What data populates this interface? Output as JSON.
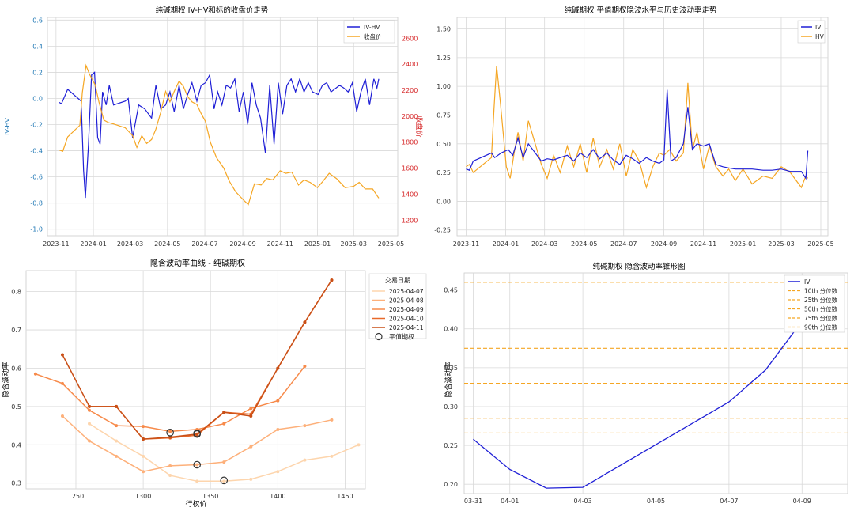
{
  "colors": {
    "ivhv": "#1f1fd6",
    "close": "#f5a623",
    "red_axis": "#d62728",
    "blue_axis": "#1f77b4",
    "grid": "#d9d9d9",
    "panel_bg": "#ffffff",
    "panel_bg3": "#eaeaf2",
    "curve_colors": [
      "#fdd5ad",
      "#fdb07a",
      "#f78a4a",
      "#e8692a",
      "#c94f16"
    ]
  },
  "chart_data": [
    {
      "type": "line",
      "title": "纯碱期权 IV-HV和标的收盘价走势",
      "ylabel": "IV-HV",
      "y2label": "收盘价",
      "x_ticks": [
        "2023-11",
        "2024-01",
        "2024-03",
        "2024-05",
        "2024-07",
        "2024-09",
        "2024-11",
        "2025-01",
        "2025-03",
        "2025-05"
      ],
      "y_ticks": [
        "-1.0",
        "-0.8",
        "-0.6",
        "-0.4",
        "-0.2",
        "0.0",
        "0.2",
        "0.4",
        "0.6"
      ],
      "y2_ticks": [
        "1200",
        "1400",
        "1600",
        "1800",
        "2000",
        "2200",
        "2400",
        "2600"
      ],
      "ylim": [
        -1.05,
        0.62
      ],
      "y2lim": [
        1080,
        2760
      ],
      "xlim": [
        "2023-10-18",
        "2025-05-12"
      ],
      "grid": true,
      "legend_position": "top-right",
      "series": [
        {
          "name": "IV-HV",
          "color": "#1f1fd6",
          "axis": "left",
          "x": [
            "2023-11-06",
            "2023-11-10",
            "2023-11-20",
            "2023-12-12",
            "2023-12-16",
            "2023-12-19",
            "2023-12-24",
            "2023-12-29",
            "2024-01-03",
            "2024-01-08",
            "2024-01-12",
            "2024-01-16",
            "2024-01-22",
            "2024-01-27",
            "2024-02-03",
            "2024-02-22",
            "2024-02-27",
            "2024-03-05",
            "2024-03-15",
            "2024-03-25",
            "2024-04-05",
            "2024-04-12",
            "2024-04-20",
            "2024-04-28",
            "2024-05-05",
            "2024-05-12",
            "2024-05-20",
            "2024-05-27",
            "2024-06-03",
            "2024-06-10",
            "2024-06-18",
            "2024-06-25",
            "2024-07-02",
            "2024-07-09",
            "2024-07-16",
            "2024-07-22",
            "2024-07-29",
            "2024-08-05",
            "2024-08-12",
            "2024-08-19",
            "2024-08-26",
            "2024-09-02",
            "2024-09-09",
            "2024-09-16",
            "2024-09-23",
            "2024-09-30",
            "2024-10-08",
            "2024-10-15",
            "2024-10-22",
            "2024-10-29",
            "2024-11-05",
            "2024-11-12",
            "2024-11-19",
            "2024-11-26",
            "2024-12-03",
            "2024-12-10",
            "2024-12-17",
            "2024-12-24",
            "2025-01-02",
            "2025-01-09",
            "2025-01-16",
            "2025-01-23",
            "2025-02-06",
            "2025-02-13",
            "2025-02-20",
            "2025-02-27",
            "2025-03-06",
            "2025-03-13",
            "2025-03-20",
            "2025-03-27",
            "2025-04-03",
            "2025-04-08",
            "2025-04-11"
          ],
          "y": [
            -0.03,
            -0.04,
            0.07,
            -0.02,
            -0.55,
            -0.76,
            -0.35,
            0.18,
            0.2,
            -0.3,
            -0.35,
            0.05,
            -0.05,
            0.1,
            -0.05,
            -0.02,
            0.0,
            -0.3,
            -0.05,
            -0.08,
            -0.15,
            0.1,
            -0.08,
            -0.05,
            0.05,
            -0.1,
            0.1,
            -0.08,
            0.03,
            0.12,
            -0.02,
            0.1,
            0.12,
            0.18,
            -0.08,
            0.05,
            -0.05,
            0.1,
            0.08,
            0.15,
            -0.1,
            0.05,
            -0.2,
            0.12,
            -0.05,
            -0.15,
            -0.42,
            0.1,
            -0.35,
            0.12,
            -0.12,
            0.1,
            0.15,
            0.05,
            0.15,
            0.05,
            0.12,
            0.05,
            0.03,
            0.1,
            0.12,
            0.05,
            0.1,
            0.08,
            0.05,
            0.12,
            -0.1,
            0.05,
            0.15,
            -0.05,
            0.15,
            0.08,
            0.15
          ]
        },
        {
          "name": "收盘价",
          "color": "#f5a623",
          "axis": "right",
          "x": [
            "2023-11-06",
            "2023-11-12",
            "2023-11-20",
            "2023-12-10",
            "2023-12-14",
            "2023-12-20",
            "2023-12-26",
            "2024-01-04",
            "2024-01-10",
            "2024-01-18",
            "2024-01-26",
            "2024-02-03",
            "2024-02-22",
            "2024-03-05",
            "2024-03-12",
            "2024-03-20",
            "2024-03-28",
            "2024-04-05",
            "2024-04-12",
            "2024-04-20",
            "2024-04-28",
            "2024-05-05",
            "2024-05-12",
            "2024-05-20",
            "2024-05-27",
            "2024-06-03",
            "2024-06-10",
            "2024-06-18",
            "2024-06-25",
            "2024-07-02",
            "2024-07-10",
            "2024-07-20",
            "2024-08-01",
            "2024-08-10",
            "2024-08-20",
            "2024-09-01",
            "2024-09-10",
            "2024-09-20",
            "2024-10-01",
            "2024-10-10",
            "2024-10-20",
            "2024-11-01",
            "2024-11-10",
            "2024-11-20",
            "2024-12-01",
            "2024-12-10",
            "2024-12-20",
            "2025-01-01",
            "2025-01-10",
            "2025-01-20",
            "2025-02-01",
            "2025-02-15",
            "2025-03-01",
            "2025-03-10",
            "2025-03-20",
            "2025-04-01",
            "2025-04-11"
          ],
          "y": [
            1740,
            1730,
            1840,
            1930,
            2180,
            2390,
            2320,
            2240,
            2110,
            1970,
            1950,
            1940,
            1910,
            1850,
            1760,
            1850,
            1790,
            1820,
            1900,
            2030,
            2190,
            2110,
            2190,
            2270,
            2230,
            2150,
            2110,
            2090,
            2020,
            1960,
            1800,
            1680,
            1600,
            1500,
            1420,
            1360,
            1320,
            1480,
            1470,
            1520,
            1510,
            1580,
            1560,
            1570,
            1470,
            1510,
            1490,
            1450,
            1500,
            1560,
            1520,
            1450,
            1460,
            1490,
            1440,
            1440,
            1370
          ]
        }
      ]
    },
    {
      "type": "line",
      "title": "纯碱期权 平值期权隐波水平与历史波动率走势",
      "x_ticks": [
        "2023-11",
        "2024-01",
        "2024-03",
        "2024-05",
        "2024-07",
        "2024-09",
        "2024-11",
        "2025-01",
        "2025-03",
        "2025-05"
      ],
      "y_ticks": [
        "-0.25",
        "0.00",
        "0.25",
        "0.50",
        "0.75",
        "1.00",
        "1.25",
        "1.50"
      ],
      "ylim": [
        -0.3,
        1.6
      ],
      "xlim": [
        "2023-10-18",
        "2025-05-12"
      ],
      "grid": true,
      "legend_position": "top-right",
      "series": [
        {
          "name": "IV",
          "color": "#1f1fd6",
          "x": [
            "2023-11-01",
            "2023-11-06",
            "2023-11-12",
            "2023-12-10",
            "2023-12-15",
            "2023-12-25",
            "2024-01-05",
            "2024-01-12",
            "2024-01-20",
            "2024-01-28",
            "2024-02-05",
            "2024-02-25",
            "2024-03-05",
            "2024-03-15",
            "2024-03-25",
            "2024-04-05",
            "2024-04-15",
            "2024-04-25",
            "2024-05-05",
            "2024-05-15",
            "2024-05-25",
            "2024-06-05",
            "2024-06-15",
            "2024-06-25",
            "2024-07-05",
            "2024-07-15",
            "2024-07-25",
            "2024-08-05",
            "2024-08-15",
            "2024-08-25",
            "2024-09-01",
            "2024-09-06",
            "2024-09-12",
            "2024-09-20",
            "2024-10-01",
            "2024-10-08",
            "2024-10-15",
            "2024-10-22",
            "2024-11-01",
            "2024-11-10",
            "2024-11-20",
            "2024-12-01",
            "2024-12-10",
            "2024-12-20",
            "2025-01-01",
            "2025-01-15",
            "2025-02-01",
            "2025-02-15",
            "2025-03-01",
            "2025-03-15",
            "2025-04-01",
            "2025-04-08",
            "2025-04-11"
          ],
          "y": [
            0.28,
            0.27,
            0.35,
            0.42,
            0.38,
            0.42,
            0.45,
            0.4,
            0.55,
            0.38,
            0.5,
            0.35,
            0.37,
            0.36,
            0.38,
            0.4,
            0.35,
            0.42,
            0.38,
            0.45,
            0.37,
            0.42,
            0.36,
            0.32,
            0.4,
            0.37,
            0.33,
            0.38,
            0.35,
            0.33,
            0.36,
            0.97,
            0.35,
            0.38,
            0.5,
            0.82,
            0.45,
            0.5,
            0.48,
            0.5,
            0.32,
            0.3,
            0.29,
            0.28,
            0.28,
            0.28,
            0.27,
            0.27,
            0.28,
            0.26,
            0.26,
            0.2,
            0.44
          ]
        },
        {
          "name": "HV",
          "color": "#f5a623",
          "x": [
            "2023-11-01",
            "2023-11-06",
            "2023-11-12",
            "2023-12-10",
            "2023-12-14",
            "2023-12-18",
            "2023-12-24",
            "2024-01-02",
            "2024-01-08",
            "2024-01-14",
            "2024-01-20",
            "2024-01-28",
            "2024-02-05",
            "2024-02-25",
            "2024-03-05",
            "2024-03-15",
            "2024-03-25",
            "2024-04-05",
            "2024-04-15",
            "2024-04-25",
            "2024-05-05",
            "2024-05-15",
            "2024-05-25",
            "2024-06-05",
            "2024-06-15",
            "2024-06-25",
            "2024-07-05",
            "2024-07-15",
            "2024-07-25",
            "2024-08-05",
            "2024-08-15",
            "2024-08-25",
            "2024-09-01",
            "2024-09-10",
            "2024-09-20",
            "2024-10-01",
            "2024-10-08",
            "2024-10-15",
            "2024-10-22",
            "2024-11-01",
            "2024-11-10",
            "2024-11-20",
            "2024-12-01",
            "2024-12-10",
            "2024-12-20",
            "2025-01-01",
            "2025-01-15",
            "2025-02-01",
            "2025-02-15",
            "2025-03-01",
            "2025-03-15",
            "2025-04-01",
            "2025-04-08",
            "2025-04-11"
          ],
          "y": [
            0.3,
            0.32,
            0.25,
            0.38,
            0.8,
            1.18,
            0.85,
            0.3,
            0.2,
            0.42,
            0.6,
            0.35,
            0.7,
            0.32,
            0.2,
            0.4,
            0.25,
            0.48,
            0.3,
            0.5,
            0.25,
            0.55,
            0.3,
            0.45,
            0.28,
            0.5,
            0.22,
            0.45,
            0.35,
            0.12,
            0.3,
            0.42,
            0.4,
            0.45,
            0.35,
            0.42,
            1.03,
            0.45,
            0.6,
            0.28,
            0.48,
            0.3,
            0.22,
            0.28,
            0.18,
            0.28,
            0.15,
            0.22,
            0.2,
            0.3,
            0.25,
            0.12,
            0.22,
            0.2
          ]
        }
      ]
    },
    {
      "type": "line",
      "title": "隐含波动率曲线 - 纯碱期权",
      "xlabel": "行权价",
      "ylabel": "隐含波动率",
      "x_ticks": [
        "1250",
        "1300",
        "1350",
        "1400",
        "1450"
      ],
      "y_ticks": [
        "0.3",
        "0.4",
        "0.5",
        "0.6",
        "0.7",
        "0.8"
      ],
      "xlim": [
        1213,
        1465
      ],
      "ylim": [
        0.285,
        0.855
      ],
      "grid": true,
      "legend_title": "交易日期",
      "legend_position": "top-right",
      "atm_label": "平值期权",
      "series": [
        {
          "name": "2025-04-07",
          "x": [
            1260,
            1280,
            1300,
            1320,
            1340,
            1360,
            1380,
            1400,
            1420,
            1440,
            1460
          ],
          "y": [
            0.455,
            0.41,
            0.37,
            0.32,
            0.305,
            0.305,
            0.31,
            0.33,
            0.36,
            0.37,
            0.4
          ],
          "atm": [
            1360,
            0.307
          ]
        },
        {
          "name": "2025-04-08",
          "x": [
            1240,
            1260,
            1280,
            1300,
            1320,
            1340,
            1360,
            1380,
            1400,
            1420,
            1440
          ],
          "y": [
            0.475,
            0.41,
            0.37,
            0.33,
            0.345,
            0.348,
            0.355,
            0.395,
            0.44,
            0.45,
            0.465
          ],
          "atm": [
            1340,
            0.348
          ]
        },
        {
          "name": "2025-04-09",
          "x": [
            1220,
            1240,
            1260,
            1280,
            1300,
            1320,
            1340,
            1360,
            1380,
            1400,
            1420
          ],
          "y": [
            0.585,
            0.56,
            0.49,
            0.45,
            0.448,
            0.435,
            0.44,
            0.455,
            0.495,
            0.515,
            0.605
          ],
          "atm": [
            1340,
            0.43
          ]
        },
        {
          "name": "2025-04-10",
          "x": [
            1260,
            1280,
            1300,
            1320,
            1340,
            1360,
            1380,
            1400,
            1420,
            1440
          ],
          "y": [
            0.5,
            0.5,
            0.415,
            0.418,
            0.425,
            0.485,
            0.48,
            0.6,
            0.72,
            0.83
          ],
          "atm": [
            1320,
            0.432
          ]
        },
        {
          "name": "2025-04-11",
          "x": [
            1240,
            1260,
            1280,
            1300,
            1320,
            1340,
            1360,
            1380,
            1400,
            1420,
            1440
          ],
          "y": [
            0.635,
            0.5,
            0.5,
            0.415,
            0.42,
            0.428,
            0.485,
            0.475,
            0.6,
            0.72,
            0.83
          ],
          "atm": [
            1340,
            0.428
          ]
        }
      ]
    },
    {
      "type": "line",
      "title": "纯碱期权 隐含波动率锥形图",
      "ylabel": "隐含波动率",
      "x_ticks": [
        "03-31",
        "04-01",
        "04-03",
        "04-05",
        "04-07",
        "04-09"
      ],
      "y_ticks": [
        "0.20",
        "0.25",
        "0.30",
        "0.35",
        "0.40",
        "0.45"
      ],
      "xlim": [
        "2025-03-30 18:00",
        "2025-04-10 06:00"
      ],
      "ylim": [
        0.188,
        0.472
      ],
      "grid": true,
      "legend_position": "top-right",
      "series": [
        {
          "name": "IV",
          "color": "#1f1fd6",
          "x": [
            "2025-03-31",
            "2025-04-01",
            "2025-04-02",
            "2025-04-03",
            "2025-04-07",
            "2025-04-08",
            "2025-04-09"
          ],
          "y": [
            0.258,
            0.219,
            0.195,
            0.196,
            0.306,
            0.347,
            0.41
          ]
        }
      ],
      "quantiles": [
        {
          "name": "10th 分位数",
          "value": 0.266
        },
        {
          "name": "25th 分位数",
          "value": 0.285
        },
        {
          "name": "50th 分位数",
          "value": 0.33
        },
        {
          "name": "75th 分位数",
          "value": 0.375
        },
        {
          "name": "90th 分位数",
          "value": 0.46
        }
      ]
    }
  ]
}
